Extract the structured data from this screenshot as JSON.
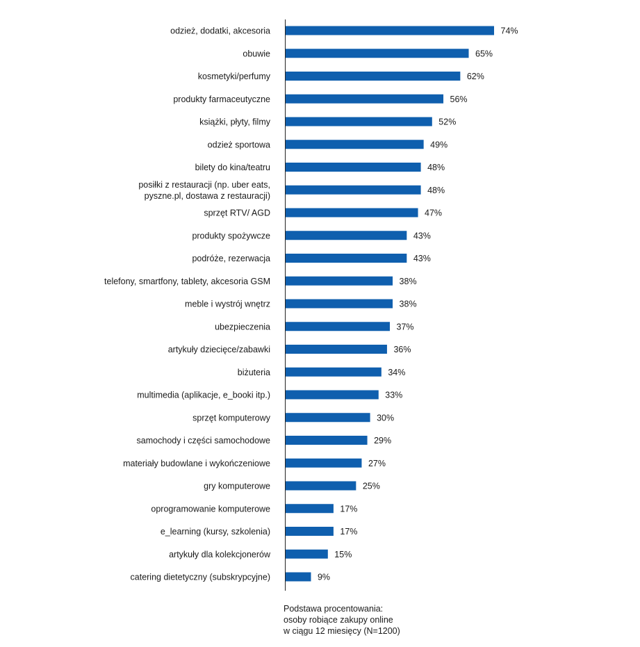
{
  "chart_data": {
    "type": "bar",
    "orientation": "horizontal",
    "categories": [
      "odzież, dodatki, akcesoria",
      "obuwie",
      "kosmetyki/perfumy",
      "produkty farmaceutyczne",
      "książki, płyty, filmy",
      "odzież sportowa",
      "bilety do kina/teatru",
      "posiłki z restauracji (np. uber eats,\npyszne.pl, dostawa z restauracji)",
      "sprzęt RTV/ AGD",
      "produkty spożywcze",
      "podróże, rezerwacja",
      "telefony, smartfony, tablety, akcesoria GSM",
      "meble i wystrój wnętrz",
      "ubezpieczenia",
      "artykuły dziecięce/zabawki",
      "biżuteria",
      "multimedia (aplikacje, e_booki itp.)",
      "sprzęt komputerowy",
      "samochody i części samochodowe",
      "materiały budowlane i wykończeniowe",
      "gry komputerowe",
      "oprogramowanie komputerowe",
      "e_learning (kursy, szkolenia)",
      "artykuły dla kolekcjonerów",
      "catering dietetyczny (subskrypcyjne)"
    ],
    "values": [
      74,
      65,
      62,
      56,
      52,
      49,
      48,
      48,
      47,
      43,
      43,
      38,
      38,
      37,
      36,
      34,
      33,
      30,
      29,
      27,
      25,
      17,
      17,
      15,
      9
    ],
    "value_labels": [
      "74%",
      "65%",
      "62%",
      "56%",
      "52%",
      "49%",
      "48%",
      "48%",
      "47%",
      "43%",
      "43%",
      "38%",
      "38%",
      "37%",
      "36%",
      "34%",
      "33%",
      "30%",
      "29%",
      "27%",
      "25%",
      "17%",
      "17%",
      "15%",
      "9%"
    ],
    "unit": "%",
    "xlim": [
      0,
      100
    ],
    "grid": false,
    "legend": "none",
    "bar_color": "#0f5fae",
    "axis_color": "#222222"
  },
  "footnote": {
    "line1": "Podstawa procentowania:",
    "line2": "osoby robiące zakupy online",
    "line3": "w ciągu 12 miesięcy (N=1200)"
  }
}
